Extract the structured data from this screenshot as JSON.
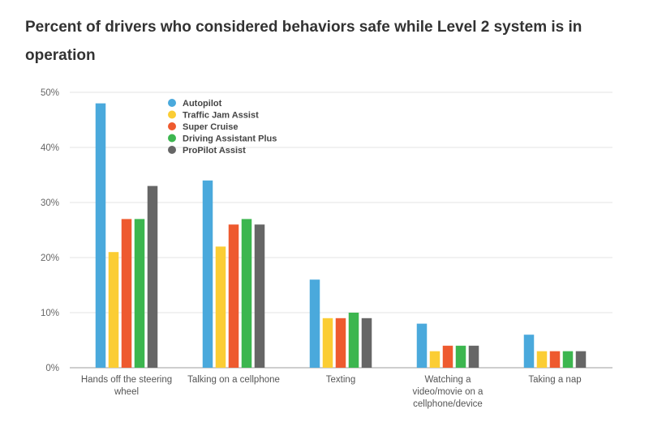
{
  "title": "Percent of drivers who considered behaviors safe while Level 2 system is in operation",
  "chart_data": {
    "type": "bar",
    "categories": [
      "Hands off the steering wheel",
      "Talking on a cellphone",
      "Texting",
      "Watching a video/movie on a cellphone/device",
      "Taking a nap"
    ],
    "category_label_lines": [
      [
        "Hands off the steering",
        "wheel"
      ],
      [
        "Talking on a cellphone"
      ],
      [
        "Texting"
      ],
      [
        "Watching a",
        "video/movie on a",
        "cellphone/device"
      ],
      [
        "Taking a nap"
      ]
    ],
    "series": [
      {
        "name": "Autopilot",
        "color": "#4aa9dc",
        "values": [
          48,
          34,
          16,
          8,
          6
        ]
      },
      {
        "name": "Traffic Jam Assist",
        "color": "#fbcd34",
        "values": [
          21,
          22,
          9,
          3,
          3
        ]
      },
      {
        "name": "Super Cruise",
        "color": "#ee5a2f",
        "values": [
          27,
          26,
          9,
          4,
          3
        ]
      },
      {
        "name": "Driving Assistant Plus",
        "color": "#3cb64f",
        "values": [
          27,
          27,
          10,
          4,
          3
        ]
      },
      {
        "name": "ProPilot Assist",
        "color": "#666666",
        "values": [
          33,
          26,
          9,
          4,
          3
        ]
      }
    ],
    "yticks": [
      "0%",
      "10%",
      "20%",
      "30%",
      "40%",
      "50%"
    ],
    "ylim": [
      0,
      50
    ],
    "grid": true,
    "legend_position": "top-left"
  }
}
